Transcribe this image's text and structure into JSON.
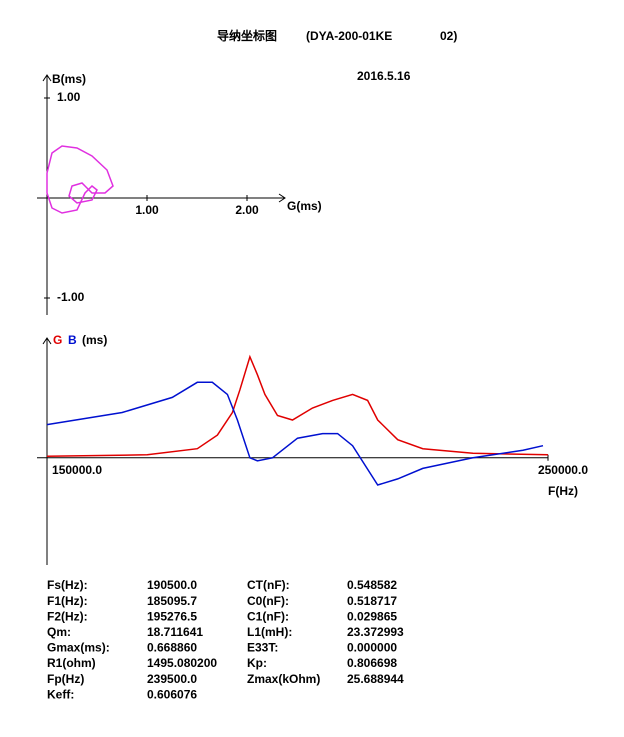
{
  "header": {
    "title": "导纳坐标图",
    "model": "(DYA-200-01KE",
    "suffix": "02)",
    "date": "2016.5.16"
  },
  "chart_data": [
    {
      "type": "line",
      "x_label": "G(ms)",
      "y_label": "B(ms)",
      "xlim": [
        -0.1,
        2.38
      ],
      "ylim": [
        -1.17,
        1.23
      ],
      "xticks": [
        {
          "value": 1,
          "label": "1.00"
        },
        {
          "value": 2,
          "label": "2.00"
        }
      ],
      "yticks": [
        {
          "value": 1,
          "label": "1.00"
        },
        {
          "value": -1,
          "label": "-1.00"
        }
      ],
      "x": [
        0.0,
        0.05,
        0.15,
        0.3,
        0.45,
        0.6,
        0.66,
        0.58,
        0.45,
        0.4,
        0.35,
        0.25,
        0.22,
        0.3,
        0.45,
        0.5,
        0.45,
        0.38,
        0.3,
        0.15,
        0.05,
        0.0,
        0.0
      ],
      "series": [
        {
          "color": "#e030e0",
          "values": [
            0.25,
            0.45,
            0.52,
            0.5,
            0.42,
            0.28,
            0.12,
            0.05,
            0.05,
            0.1,
            0.15,
            0.12,
            0.02,
            -0.05,
            -0.02,
            0.08,
            0.12,
            0.05,
            -0.12,
            -0.15,
            -0.1,
            0.05,
            0.25
          ]
        }
      ]
    },
    {
      "type": "line",
      "x_label": "F(Hz)",
      "y_unit": "(ms)",
      "xlim": [
        148000,
        250000
      ],
      "ylim": [
        -0.71,
        0.78
      ],
      "xticks": [
        {
          "value": 150000,
          "label": "150000.0"
        },
        {
          "value": 250000,
          "label": "250000.0"
        }
      ],
      "series": [
        {
          "name": "G",
          "color": "#e00000",
          "x": [
            150000,
            170000,
            180000,
            184000,
            187000,
            188500,
            190500,
            192000,
            193500,
            196000,
            199000,
            203000,
            207000,
            211000,
            214000,
            216000,
            220000,
            225000,
            235000,
            250000
          ],
          "values": [
            0.01,
            0.02,
            0.06,
            0.15,
            0.3,
            0.45,
            0.669,
            0.55,
            0.42,
            0.28,
            0.25,
            0.33,
            0.38,
            0.42,
            0.38,
            0.25,
            0.12,
            0.06,
            0.03,
            0.02
          ]
        },
        {
          "name": "B",
          "color": "#0010d0",
          "x": [
            150000,
            165000,
            175000,
            180000,
            183000,
            186000,
            188000,
            190500,
            192000,
            195000,
            200000,
            205000,
            208000,
            211000,
            216000,
            220000,
            225000,
            235000,
            245000,
            249000
          ],
          "values": [
            0.22,
            0.3,
            0.4,
            0.5,
            0.5,
            0.42,
            0.25,
            0.0,
            -0.02,
            0.0,
            0.13,
            0.16,
            0.16,
            0.08,
            -0.18,
            -0.14,
            -0.07,
            0.0,
            0.05,
            0.08
          ]
        }
      ]
    }
  ],
  "table": {
    "rows": [
      [
        "Fs(Hz):",
        "190500.0",
        "CT(nF):",
        "0.548582"
      ],
      [
        "F1(Hz):",
        "185095.7",
        "C0(nF):",
        "0.518717"
      ],
      [
        "F2(Hz):",
        "195276.5",
        "C1(nF):",
        "0.029865"
      ],
      [
        "Qm:",
        "18.711641",
        "L1(mH):",
        "23.372993"
      ],
      [
        "Gmax(ms):",
        "0.668860",
        "E33T:",
        "0.000000"
      ],
      [
        "R1(ohm)",
        "1495.080200",
        "Kp:",
        "0.806698"
      ],
      [
        "Fp(Hz)",
        "239500.0",
        "Zmax(kOhm)",
        "25.688944"
      ],
      [
        "Keff:",
        "0.606076"
      ]
    ]
  }
}
